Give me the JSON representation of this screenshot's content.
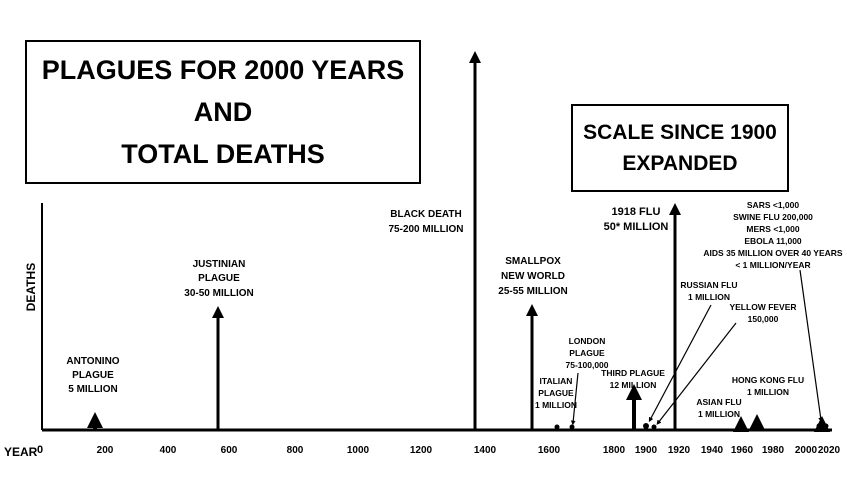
{
  "main_title": [
    "PLAGUES FOR 2000 YEARS",
    "AND",
    "TOTAL DEATHS"
  ],
  "scale_note": [
    "SCALE SINCE 1900",
    "EXPANDED"
  ],
  "y_axis_label": "DEATHS",
  "x_axis_label": "YEAR",
  "ticks": [
    {
      "label": "0"
    },
    {
      "label": "200"
    },
    {
      "label": "400"
    },
    {
      "label": "600"
    },
    {
      "label": "800"
    },
    {
      "label": "1000"
    },
    {
      "label": "1200"
    },
    {
      "label": "1400"
    },
    {
      "label": "1600"
    },
    {
      "label": "1800"
    },
    {
      "label": "1900"
    },
    {
      "label": "1920"
    },
    {
      "label": "1940"
    },
    {
      "label": "1960"
    },
    {
      "label": "1980"
    },
    {
      "label": "2000"
    },
    {
      "label": "2020"
    }
  ],
  "plagues": [
    {
      "label": [
        "ANTONINO",
        "PLAGUE",
        "5 MILLION"
      ]
    },
    {
      "label": [
        "JUSTINIAN",
        "PLAGUE",
        "30-50 MILLION"
      ]
    },
    {
      "label": [
        "BLACK DEATH",
        "75-200 MILLION"
      ]
    },
    {
      "label": [
        "SMALLPOX",
        "NEW WORLD",
        "25-55 MILLION"
      ]
    },
    {
      "label": [
        "ITALIAN",
        "PLAGUE",
        "1 MILLION"
      ]
    },
    {
      "label": [
        "LONDON",
        "PLAGUE",
        "75-100,000"
      ]
    },
    {
      "label": [
        "THIRD PLAGUE",
        "12 MILLION"
      ]
    },
    {
      "label": [
        "RUSSIAN FLU",
        "1 MILLION"
      ]
    },
    {
      "label": [
        "YELLOW FEVER",
        "150,000"
      ]
    },
    {
      "label": [
        "1918 FLU",
        "50* MILLION"
      ]
    },
    {
      "label": [
        "ASIAN FLU",
        "1 MILLION"
      ]
    },
    {
      "label": [
        "HONG KONG FLU",
        "1 MILLION"
      ]
    },
    {
      "label": [
        "SARS <1,000",
        "SWINE FLU 200,000",
        "MERS <1,000",
        "EBOLA 11,000",
        "AIDS 35 MILLION  OVER 40 YEARS",
        "< 1 MILLION/YEAR"
      ]
    }
  ]
}
